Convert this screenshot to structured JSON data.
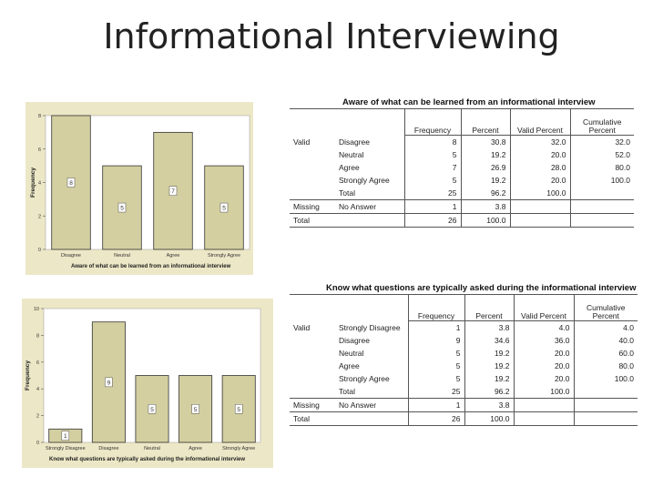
{
  "slide": {
    "title": "Informational Interviewing"
  },
  "colors": {
    "bar_fill": "#d3cfa0",
    "bar_stroke": "#333333",
    "plot_bg": "#ffffff",
    "chart_bg": "#ece7c6"
  },
  "chart_data": [
    {
      "type": "bar",
      "categories": [
        "Disagree",
        "Neutral",
        "Agree",
        "Strongly Agree"
      ],
      "values": [
        8,
        5,
        7,
        5
      ],
      "data_labels": [
        "8",
        "5",
        "7",
        "5"
      ],
      "xlabel": "Aware of what can be learned from an informational interview",
      "ylabel": "Frequency",
      "ylim": [
        0,
        8
      ],
      "yticks": [
        0,
        2,
        4,
        6,
        8
      ]
    },
    {
      "type": "bar",
      "categories": [
        "Strongly Disagree",
        "Disagree",
        "Neutral",
        "Agree",
        "Strongly Agree"
      ],
      "values": [
        1,
        9,
        5,
        5,
        5
      ],
      "data_labels": [
        "1",
        "9",
        "5",
        "5",
        "5"
      ],
      "xlabel": "Know what questions are typically asked during the informational interview",
      "ylabel": "Frequency",
      "ylim": [
        0,
        10
      ],
      "yticks": [
        0,
        2,
        4,
        6,
        8,
        10
      ]
    }
  ],
  "tables": [
    {
      "title": "Aware of what can be learned from an informational interview",
      "headers": [
        "Frequency",
        "Percent",
        "Valid Percent",
        "Cumulative Percent"
      ],
      "groups": [
        {
          "label": "Valid",
          "rows": [
            {
              "label": "Disagree",
              "cells": [
                "8",
                "30.8",
                "32.0",
                "32.0"
              ]
            },
            {
              "label": "Neutral",
              "cells": [
                "5",
                "19.2",
                "20.0",
                "52.0"
              ]
            },
            {
              "label": "Agree",
              "cells": [
                "7",
                "26.9",
                "28.0",
                "80.0"
              ]
            },
            {
              "label": "Strongly Agree",
              "cells": [
                "5",
                "19.2",
                "20.0",
                "100.0"
              ]
            },
            {
              "label": "Total",
              "cells": [
                "25",
                "96.2",
                "100.0",
                ""
              ]
            }
          ]
        },
        {
          "label": "Missing",
          "rows": [
            {
              "label": "No Answer",
              "cells": [
                "1",
                "3.8",
                "",
                ""
              ]
            }
          ]
        },
        {
          "label": "Total",
          "rows": [
            {
              "label": "",
              "cells": [
                "26",
                "100.0",
                "",
                ""
              ]
            }
          ]
        }
      ]
    },
    {
      "title": "Know what questions are typically asked during the informational interview",
      "headers": [
        "Frequency",
        "Percent",
        "Valid Percent",
        "Cumulative Percent"
      ],
      "groups": [
        {
          "label": "Valid",
          "rows": [
            {
              "label": "Strongly Disagree",
              "cells": [
                "1",
                "3.8",
                "4.0",
                "4.0"
              ]
            },
            {
              "label": "Disagree",
              "cells": [
                "9",
                "34.6",
                "36.0",
                "40.0"
              ]
            },
            {
              "label": "Neutral",
              "cells": [
                "5",
                "19.2",
                "20.0",
                "60.0"
              ]
            },
            {
              "label": "Agree",
              "cells": [
                "5",
                "19.2",
                "20.0",
                "80.0"
              ]
            },
            {
              "label": "Strongly Agree",
              "cells": [
                "5",
                "19.2",
                "20.0",
                "100.0"
              ]
            },
            {
              "label": "Total",
              "cells": [
                "25",
                "96.2",
                "100.0",
                ""
              ]
            }
          ]
        },
        {
          "label": "Missing",
          "rows": [
            {
              "label": "No Answer",
              "cells": [
                "1",
                "3.8",
                "",
                ""
              ]
            }
          ]
        },
        {
          "label": "Total",
          "rows": [
            {
              "label": "",
              "cells": [
                "26",
                "100.0",
                "",
                ""
              ]
            }
          ]
        }
      ]
    }
  ]
}
